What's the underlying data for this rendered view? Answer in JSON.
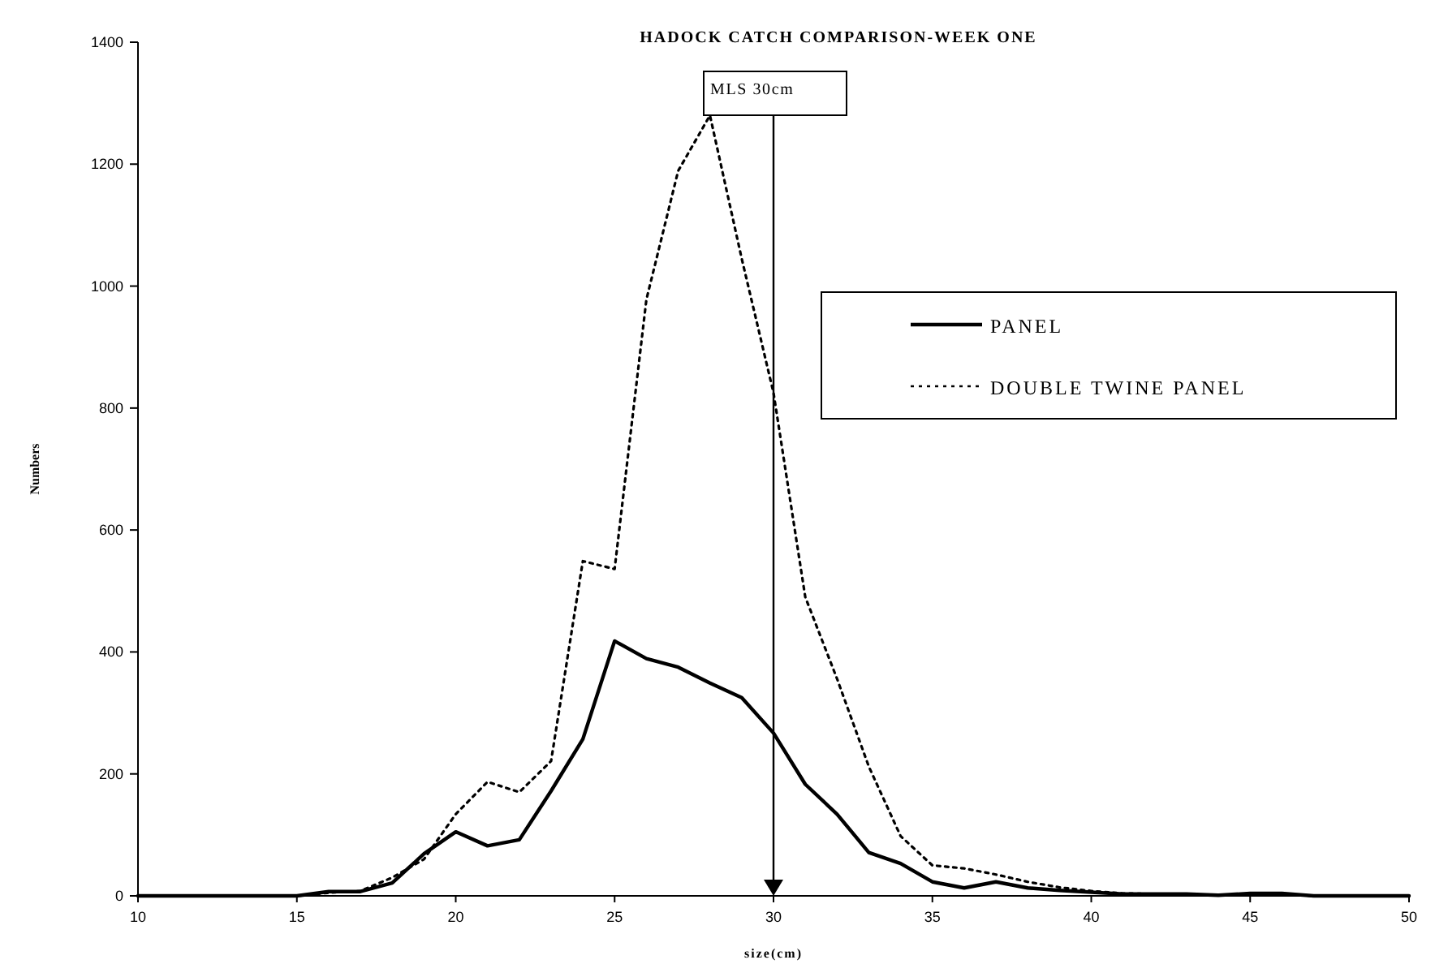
{
  "chart_data": {
    "type": "line",
    "title": "HADOCK CATCH COMPARISON-WEEK ONE",
    "xlabel": "size(cm)",
    "ylabel": "Numbers",
    "x": [
      10,
      11,
      12,
      13,
      14,
      15,
      16,
      17,
      18,
      19,
      20,
      21,
      22,
      23,
      24,
      25,
      26,
      27,
      28,
      29,
      30,
      31,
      32,
      33,
      34,
      35,
      36,
      37,
      38,
      39,
      40,
      41,
      42,
      43,
      44,
      45,
      46,
      47,
      48,
      49,
      50
    ],
    "xlim": [
      10,
      50
    ],
    "xticks": [
      10,
      15,
      20,
      25,
      30,
      35,
      40,
      45,
      50
    ],
    "ylim": [
      0,
      1400
    ],
    "yticks": [
      0,
      200,
      400,
      600,
      800,
      1000,
      1200,
      1400
    ],
    "grid": false,
    "legend": "right",
    "ref_lines": [
      {
        "axis": "x",
        "value": 30,
        "label": "MLS 30cm",
        "color": "#000000"
      }
    ],
    "series": [
      {
        "name": "PANEL",
        "color": "#000000",
        "line_style": "solid",
        "values": [
          0,
          0,
          0,
          0,
          0,
          0,
          7,
          7,
          21,
          69,
          105,
          82,
          92,
          172,
          257,
          418,
          389,
          375,
          349,
          325,
          267,
          183,
          134,
          71,
          53,
          23,
          13,
          23,
          13,
          9,
          6,
          3,
          3,
          3,
          1,
          4,
          4,
          0,
          0,
          0,
          0
        ]
      },
      {
        "name": "DOUBLE TWINE PANEL",
        "color": "#000000",
        "line_style": "dotted",
        "values": [
          0,
          0,
          0,
          0,
          0,
          0,
          5,
          8,
          30,
          60,
          134,
          187,
          170,
          221,
          549,
          536,
          978,
          1189,
          1280,
          1045,
          825,
          490,
          356,
          212,
          98,
          50,
          45,
          35,
          23,
          14,
          8,
          4,
          3,
          3,
          1,
          2,
          2,
          0,
          0,
          0,
          0
        ]
      }
    ]
  }
}
